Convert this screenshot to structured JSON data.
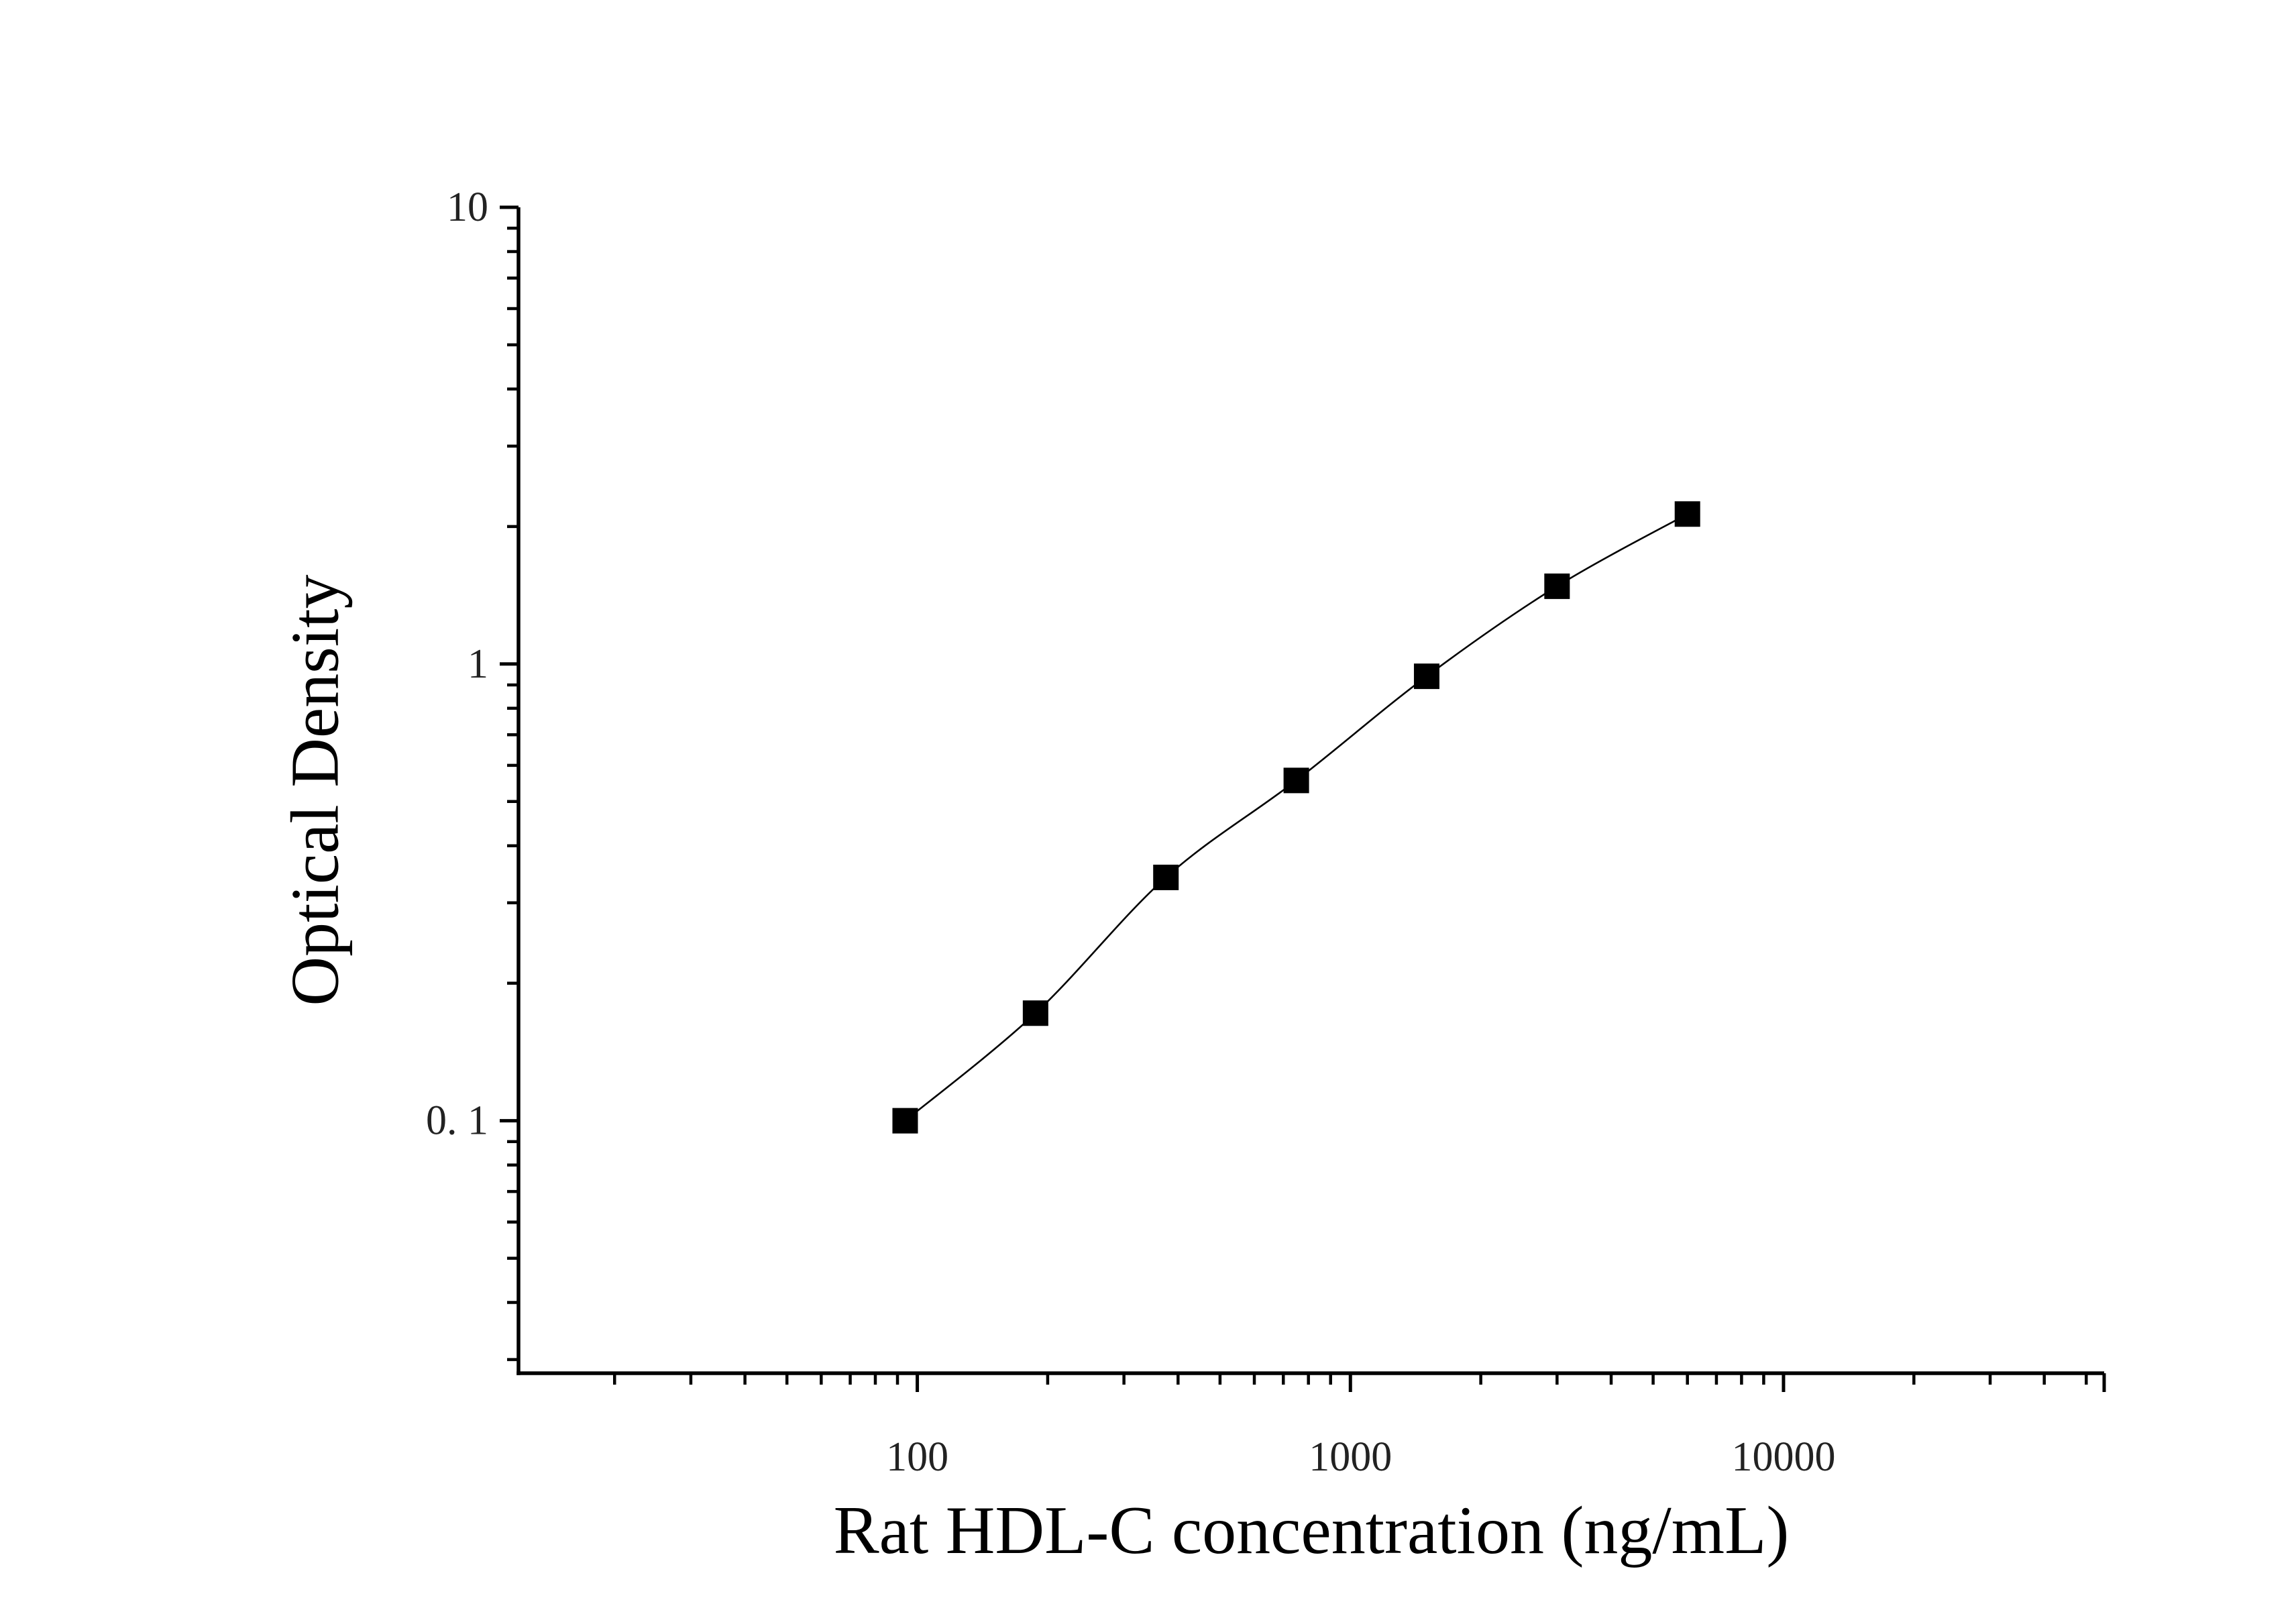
{
  "chart_data": {
    "type": "scatter",
    "xlabel": "Rat HDL-C concentration (ng/mL)",
    "ylabel": "Optical Density",
    "x_scale": "log",
    "y_scale": "log",
    "xlim": [
      12,
      55000
    ],
    "ylim": [
      0.028,
      10
    ],
    "x_ticks": [
      {
        "value": 100,
        "label": "100"
      },
      {
        "value": 1000,
        "label": "1000"
      },
      {
        "value": 10000,
        "label": "10000"
      }
    ],
    "y_ticks": [
      {
        "value": 0.1,
        "label": "0. 1"
      },
      {
        "value": 1,
        "label": "1"
      },
      {
        "value": 10,
        "label": "10"
      }
    ],
    "grid": false,
    "legend": "none",
    "colors": {
      "marker": "#000000",
      "curve": "#000000",
      "axis": "#000000"
    },
    "series": [
      {
        "marker": "square",
        "fit": "smooth-curve",
        "x": [
          93.75,
          187.5,
          375,
          750,
          1500,
          3000,
          6000
        ],
        "y": [
          0.1,
          0.172,
          0.341,
          0.556,
          0.94,
          1.48,
          2.13
        ]
      }
    ]
  }
}
